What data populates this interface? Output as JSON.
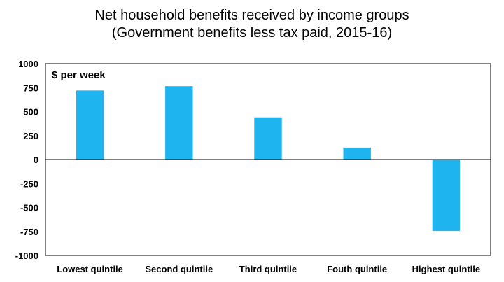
{
  "chart_data": {
    "type": "bar",
    "title": "Net household benefits received by income groups",
    "subtitle": "(Government benefits less tax paid, 2015-16)",
    "unit_label": "$ per week",
    "categories": [
      "Lowest quintile",
      "Second quintile",
      "Third quintile",
      "Fouth quintile",
      "Highest quintile"
    ],
    "values": [
      720,
      765,
      440,
      125,
      -745
    ],
    "ylim": [
      -1000,
      1000
    ],
    "yticks": [
      1000,
      750,
      500,
      250,
      0,
      -250,
      -500,
      -750,
      -1000
    ],
    "ytick_labels": [
      "1000",
      "750",
      "500",
      "250",
      "0",
      "-250",
      "-500",
      "-750",
      "-1000"
    ],
    "grid": false,
    "legend": "none",
    "bar_color": "#1EB4F0"
  }
}
